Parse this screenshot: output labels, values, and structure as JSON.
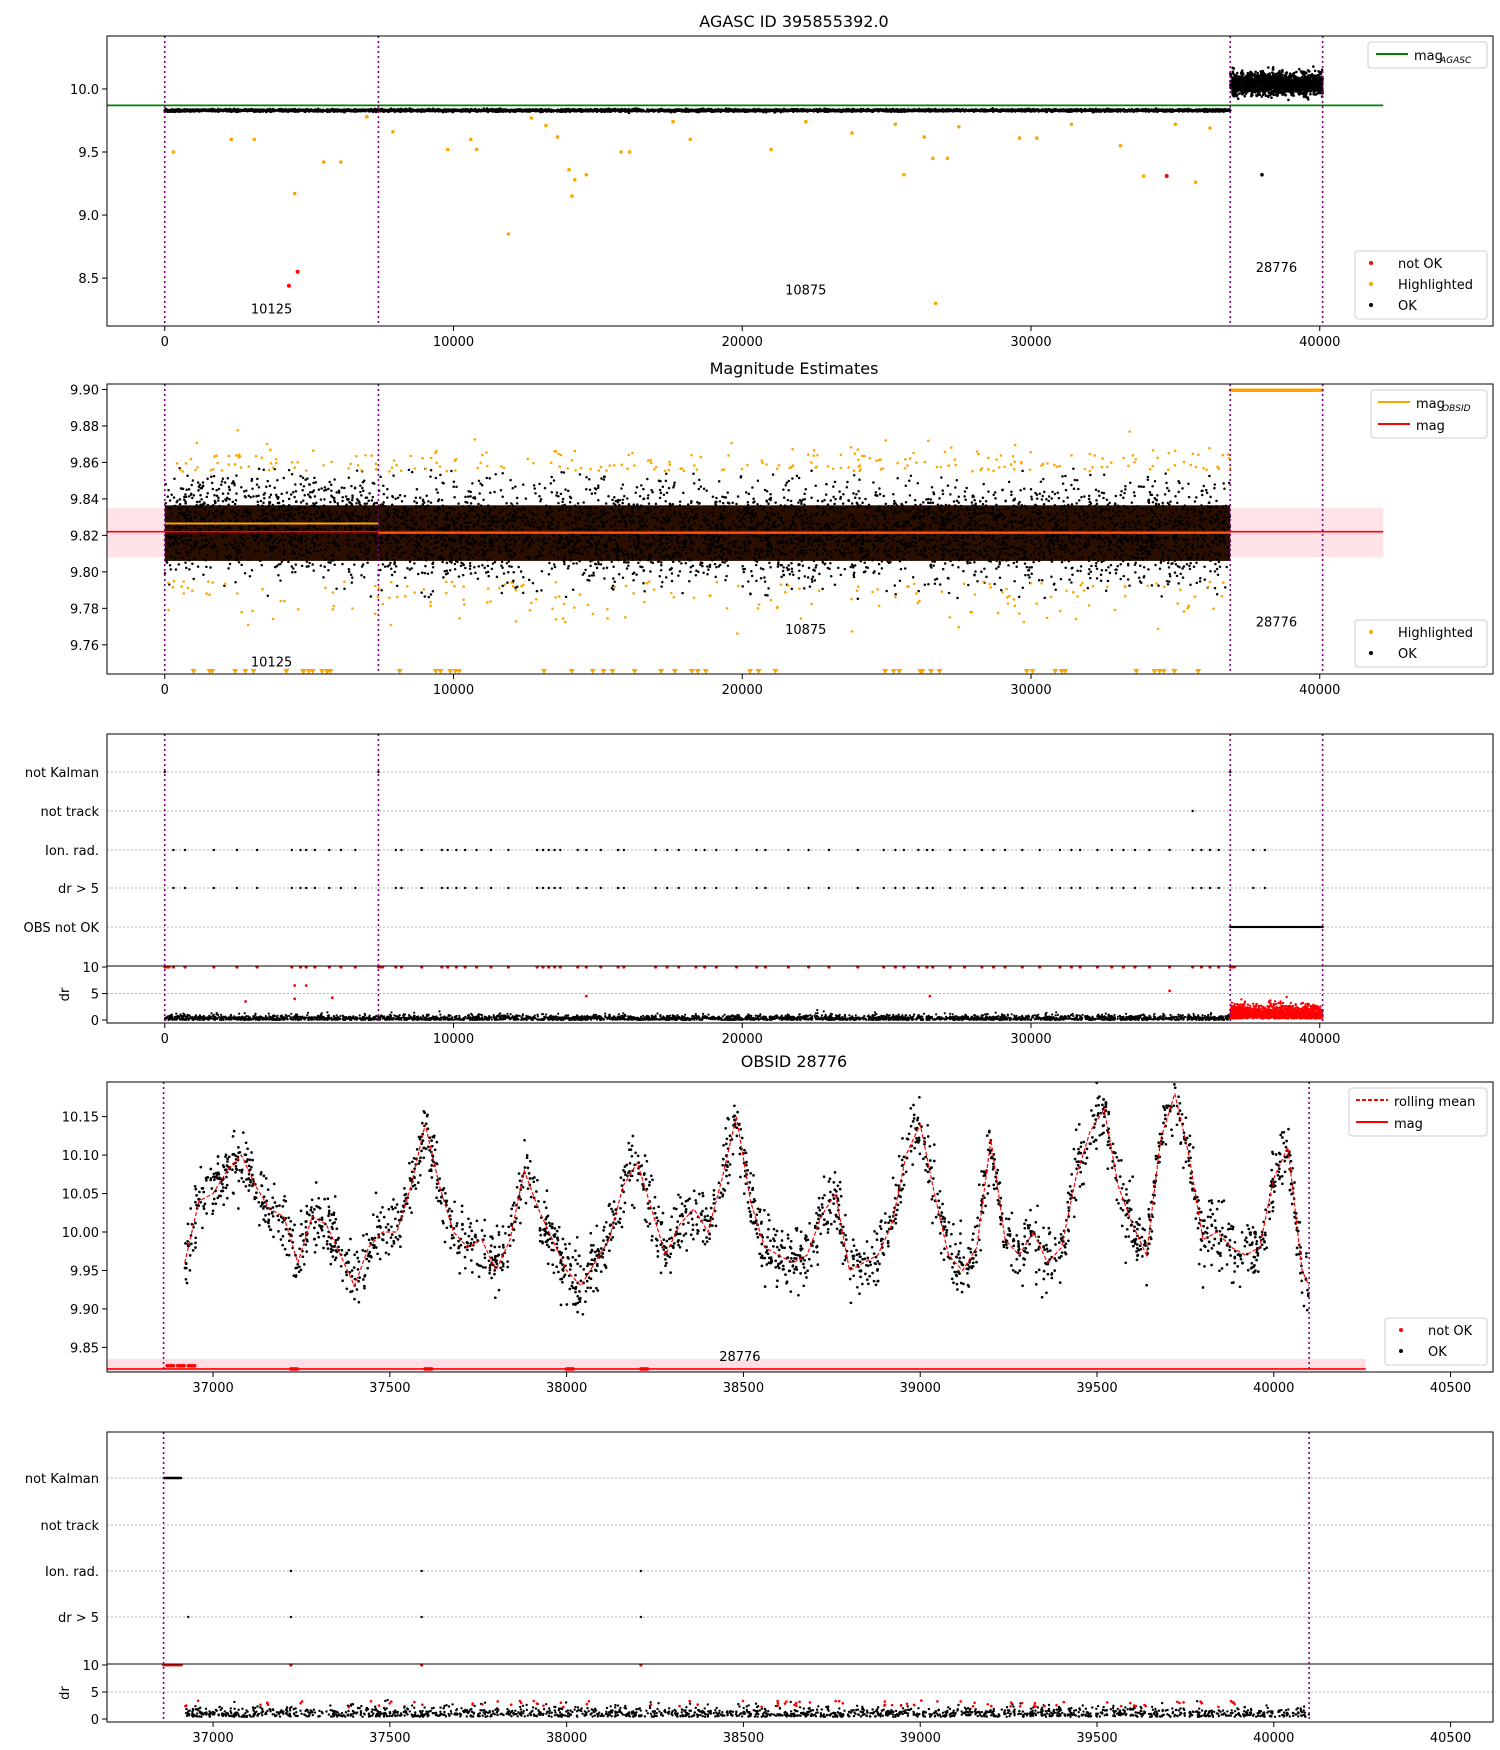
{
  "figure": {
    "panel1_title": "AGASC ID 395855392.0",
    "panel2_title": "Magnitude Estimates",
    "panel4_title": "OBSID 28776"
  },
  "colors": {
    "ok": "#000000",
    "highlighted": "#ffa500",
    "not_ok": "#ff0000",
    "agasc_line": "#008000",
    "mag_line": "#ff0000",
    "mag_band": "#ffc0cb",
    "obsid_mag_line": "#ffa500",
    "obs_boundary": "#800080",
    "rolling_mean": "#ff0000",
    "grid": "#b0b0b0"
  },
  "chart_data": [
    {
      "type": "scatter",
      "title": "AGASC ID 395855392.0",
      "xlabel": "",
      "ylabel": "",
      "xlim": [
        -2000,
        46000
      ],
      "ylim": [
        8.12,
        10.42
      ],
      "xticks": [
        0,
        10000,
        20000,
        30000,
        40000
      ],
      "xtick_labels": [
        "0",
        "10000",
        "20000",
        "30000",
        "40000"
      ],
      "yticks": [
        8.5,
        9.0,
        9.5,
        10.0
      ],
      "ytick_labels": [
        "8.5",
        "9.0",
        "9.5",
        "10.0"
      ],
      "hlines": [
        {
          "name": "mag_AGASC",
          "y": 9.87,
          "x_range": [
            -2000,
            42200
          ],
          "color": "#008000"
        }
      ],
      "obs_boundaries": [
        0,
        7400,
        36900,
        40100
      ],
      "obsid_labels": [
        {
          "text": "10125",
          "x": 3700,
          "y": 8.22
        },
        {
          "text": "10875",
          "x": 22200,
          "y": 8.37
        },
        {
          "text": "28776",
          "x": 38500,
          "y": 8.55
        }
      ],
      "series": [
        {
          "name": "not OK",
          "color": "#ff0000",
          "points": [
            [
              4300,
              8.44
            ],
            [
              4600,
              8.55
            ],
            [
              34700,
              9.31
            ]
          ]
        },
        {
          "name": "Highlighted",
          "color": "#ffa500",
          "points": [
            [
              300,
              9.5
            ],
            [
              2300,
              9.6
            ],
            [
              3100,
              9.6
            ],
            [
              4500,
              9.17
            ],
            [
              5500,
              9.42
            ],
            [
              6100,
              9.42
            ],
            [
              7000,
              9.78
            ],
            [
              7900,
              9.66
            ],
            [
              9800,
              9.52
            ],
            [
              10600,
              9.6
            ],
            [
              10800,
              9.52
            ],
            [
              11900,
              8.85
            ],
            [
              12700,
              9.77
            ],
            [
              13200,
              9.71
            ],
            [
              13600,
              9.62
            ],
            [
              14000,
              9.36
            ],
            [
              14100,
              9.15
            ],
            [
              14200,
              9.28
            ],
            [
              14600,
              9.32
            ],
            [
              15800,
              9.5
            ],
            [
              16100,
              9.5
            ],
            [
              17600,
              9.74
            ],
            [
              18200,
              9.6
            ],
            [
              21000,
              9.52
            ],
            [
              22200,
              9.74
            ],
            [
              23800,
              9.65
            ],
            [
              25300,
              9.72
            ],
            [
              25600,
              9.32
            ],
            [
              26300,
              9.62
            ],
            [
              26600,
              9.45
            ],
            [
              26700,
              8.3
            ],
            [
              27100,
              9.45
            ],
            [
              27500,
              9.7
            ],
            [
              29600,
              9.61
            ],
            [
              30200,
              9.61
            ],
            [
              31400,
              9.72
            ],
            [
              33100,
              9.55
            ],
            [
              33900,
              9.31
            ],
            [
              35000,
              9.72
            ],
            [
              35700,
              9.26
            ],
            [
              36200,
              9.69
            ]
          ]
        },
        {
          "name": "OK",
          "color": "#000000",
          "points": [
            [
              38000,
              9.32
            ]
          ],
          "dense_bands": [
            {
              "x": [
                0,
                36900
              ],
              "y_center": 9.83,
              "y_spread": 0.025
            },
            {
              "x": [
                36900,
                40100
              ],
              "y_center": 10.04,
              "y_spread": 0.12
            }
          ]
        }
      ],
      "legend": {
        "placement": "top-right",
        "entries": [
          "mag_AGASC"
        ]
      },
      "legend2": {
        "placement": "bottom-right",
        "entries": [
          "not OK",
          "Highlighted",
          "OK"
        ]
      }
    },
    {
      "type": "scatter",
      "title": "Magnitude Estimates",
      "xlabel": "",
      "ylabel": "",
      "xlim": [
        -2000,
        46000
      ],
      "ylim": [
        9.744,
        9.903
      ],
      "xticks": [
        0,
        10000,
        20000,
        30000,
        40000
      ],
      "xtick_labels": [
        "0",
        "10000",
        "20000",
        "30000",
        "40000"
      ],
      "yticks": [
        9.76,
        9.78,
        9.8,
        9.82,
        9.84,
        9.86,
        9.88,
        9.9
      ],
      "ytick_labels": [
        "9.76",
        "9.78",
        "9.80",
        "9.82",
        "9.84",
        "9.86",
        "9.88",
        "9.90"
      ],
      "mag_band": {
        "y_low": 9.808,
        "y_high": 9.835,
        "x_range": [
          -2000,
          42200
        ]
      },
      "mag": 9.822,
      "obsid_mag": [
        {
          "x_range": [
            0,
            7400
          ],
          "y": 9.8265
        },
        {
          "x_range": [
            7400,
            36900
          ],
          "y": 9.8215
        },
        {
          "x_range": [
            36900,
            40100
          ],
          "y": 9.9
        }
      ],
      "obs_boundaries": [
        0,
        7400,
        36900,
        40100
      ],
      "obsid_labels": [
        {
          "text": "10125",
          "x": 3700,
          "y": 9.748
        },
        {
          "text": "10875",
          "x": 22200,
          "y": 9.766
        },
        {
          "text": "28776",
          "x": 38500,
          "y": 9.77
        }
      ],
      "series": [
        {
          "name": "Highlighted",
          "color": "#ffa500",
          "note_points": "orange points scattered above 9.855 and below 9.795 across 0-36900; flat row at 9.90 for 36900-40100; clipped triangles along the bottom axis"
        },
        {
          "name": "OK",
          "color": "#000000",
          "dense_bands": [
            {
              "x": [
                0,
                7400
              ],
              "y_center": 9.8265,
              "y_spread": 0.025
            },
            {
              "x": [
                7400,
                36900
              ],
              "y_center": 9.8215,
              "y_spread": 0.025
            }
          ]
        }
      ],
      "legend": {
        "placement": "top-right",
        "entries": [
          "mag_OBSID",
          "mag"
        ]
      },
      "legend2": {
        "placement": "bottom-right",
        "entries": [
          "Highlighted",
          "OK"
        ]
      }
    },
    {
      "type": "scatter",
      "title": "",
      "xlim": [
        -2000,
        46000
      ],
      "categories": [
        "not Kalman",
        "not track",
        "Ion. rad.",
        "dr > 5",
        "OBS not OK"
      ],
      "xticks": [
        0,
        10000,
        20000,
        30000,
        40000
      ],
      "xtick_labels": [
        "0",
        "10000",
        "20000",
        "30000",
        "40000"
      ],
      "dr_ylabel": "dr",
      "dr_yticks": [
        0,
        5,
        10
      ],
      "dr_ytick_labels": [
        "0",
        "5",
        "10"
      ],
      "obs_boundaries": [
        0,
        7400,
        36900,
        40100
      ],
      "flags": {
        "not Kalman": [
          0,
          7400,
          36900
        ],
        "not track": [
          35600
        ],
        "Ion. rad.": [
          300,
          700,
          1700,
          2500,
          3200,
          4400,
          4700,
          4900,
          5200,
          5700,
          6100,
          6600,
          8000,
          8200,
          8900,
          9600,
          9800,
          10100,
          10400,
          10800,
          11300,
          11900,
          12900,
          13100,
          13300,
          13500,
          13700,
          14300,
          14600,
          15100,
          15700,
          15900,
          17000,
          17400,
          17800,
          18400,
          18700,
          19100,
          19800,
          20500,
          20800,
          21600,
          22300,
          23000,
          24000,
          24900,
          25300,
          25600,
          26100,
          26400,
          26600,
          27200,
          27700,
          28300,
          28700,
          29100,
          29700,
          30300,
          31000,
          31400,
          31700,
          32300,
          32800,
          33200,
          33600,
          34100,
          34800,
          35600,
          35900,
          36200,
          36500,
          37700,
          38100
        ],
        "dr > 5": [
          300,
          700,
          1700,
          2500,
          3200,
          4400,
          4700,
          4900,
          5200,
          5700,
          6100,
          6600,
          8000,
          8200,
          8900,
          9600,
          9800,
          10100,
          10400,
          10800,
          11300,
          11900,
          12900,
          13100,
          13300,
          13500,
          13700,
          14300,
          14600,
          15100,
          15700,
          15900,
          17000,
          17400,
          17800,
          18400,
          18700,
          19100,
          19800,
          20500,
          20800,
          21600,
          22300,
          23000,
          24000,
          24900,
          25300,
          25600,
          26100,
          26400,
          26600,
          27200,
          27700,
          28300,
          28700,
          29100,
          29700,
          30300,
          31000,
          31400,
          31700,
          32300,
          32800,
          33200,
          33600,
          34100,
          34800,
          35600,
          35900,
          36200,
          36500,
          37700,
          38100
        ],
        "OBS not OK": [
          [
            36900,
            40100
          ]
        ]
      },
      "dr_series": [
        {
          "name": "OK",
          "color": "#000000",
          "note": "dense black points 0-1 from 0 to 36900"
        },
        {
          "name": "not OK",
          "color": "#ff0000",
          "note": "red row at 10 (clipped) on flagged times; dense red 0-3 from 36900 to 40100; sparse red points near 3-6"
        }
      ]
    },
    {
      "type": "line",
      "title": "OBSID 28776",
      "xlabel": "",
      "ylabel": "",
      "xlim": [
        36700,
        40620
      ],
      "ylim": [
        9.818,
        10.195
      ],
      "xticks": [
        37000,
        37500,
        38000,
        38500,
        39000,
        39500,
        40000,
        40500
      ],
      "xtick_labels": [
        "37000",
        "37500",
        "38000",
        "38500",
        "39000",
        "39500",
        "40000",
        "40500"
      ],
      "yticks": [
        9.85,
        9.9,
        9.95,
        10.0,
        10.05,
        10.1,
        10.15
      ],
      "ytick_labels": [
        "9.85",
        "9.90",
        "9.95",
        "10.00",
        "10.05",
        "10.10",
        "10.15"
      ],
      "mag": 9.822,
      "mag_band": {
        "y_low": 9.814,
        "y_high": 9.835,
        "x_range": [
          36700,
          40260
        ]
      },
      "obs_boundaries": [
        36860,
        40100
      ],
      "obsid_labels": [
        {
          "text": "28776",
          "x": 38490,
          "y": 9.832
        }
      ],
      "series": [
        {
          "name": "rolling mean",
          "color": "#ff0000",
          "style": "dashed",
          "x": [
            36920,
            36960,
            37000,
            37040,
            37080,
            37120,
            37160,
            37200,
            37240,
            37280,
            37320,
            37360,
            37400,
            37440,
            37480,
            37520,
            37560,
            37600,
            37640,
            37680,
            37720,
            37760,
            37800,
            37840,
            37880,
            37920,
            37960,
            38000,
            38040,
            38080,
            38120,
            38160,
            38200,
            38240,
            38280,
            38320,
            38360,
            38400,
            38440,
            38480,
            38520,
            38560,
            38600,
            38640,
            38680,
            38720,
            38760,
            38800,
            38840,
            38880,
            38920,
            38960,
            39000,
            39040,
            39080,
            39120,
            39160,
            39200,
            39240,
            39280,
            39320,
            39360,
            39400,
            39440,
            39480,
            39520,
            39560,
            39600,
            39640,
            39680,
            39720,
            39760,
            39800,
            39840,
            39880,
            39920,
            39960,
            40000,
            40040,
            40080,
            40100
          ],
          "values": [
            9.96,
            10.04,
            10.05,
            10.08,
            10.1,
            10.06,
            10.03,
            10.02,
            9.96,
            10.02,
            10.01,
            9.97,
            9.93,
            9.98,
            10.0,
            10.0,
            10.06,
            10.14,
            10.06,
            10.0,
            9.98,
            9.99,
            9.95,
            9.99,
            10.08,
            10.03,
            9.99,
            9.95,
            9.93,
            9.96,
            9.99,
            10.06,
            10.09,
            10.03,
            9.97,
            10.01,
            10.03,
            10.0,
            10.07,
            10.15,
            10.04,
            9.98,
            9.97,
            9.96,
            9.97,
            10.02,
            10.05,
            9.95,
            9.96,
            9.97,
            10.01,
            10.1,
            10.14,
            10.05,
            9.97,
            9.95,
            9.98,
            10.12,
            9.99,
            9.97,
            10.0,
            9.96,
            9.98,
            10.07,
            10.13,
            10.16,
            10.06,
            10.01,
            9.97,
            10.12,
            10.18,
            10.1,
            9.99,
            10.0,
            9.98,
            9.97,
            9.98,
            10.07,
            10.11,
            9.95,
            9.93
          ]
        },
        {
          "name": "mag",
          "color": "#ff0000",
          "style": "solid",
          "y": 9.822
        },
        {
          "name": "OK",
          "color": "#000000",
          "note": "dense black points scattered about the rolling mean"
        },
        {
          "name": "not OK",
          "color": "#ff0000",
          "points": [
            [
              36870,
              9.826
            ],
            [
              36900,
              9.826
            ],
            [
              36930,
              9.826
            ],
            [
              37220,
              9.822
            ],
            [
              37600,
              9.822
            ],
            [
              38000,
              9.822
            ],
            [
              38210,
              9.822
            ]
          ]
        }
      ],
      "legend": {
        "placement": "top-right",
        "entries": [
          "rolling mean",
          "mag"
        ]
      },
      "legend2": {
        "placement": "bottom-right",
        "entries": [
          "not OK",
          "OK"
        ]
      }
    },
    {
      "type": "scatter",
      "title": "",
      "xlim": [
        36700,
        40620
      ],
      "categories": [
        "not Kalman",
        "not track",
        "Ion. rad.",
        "dr > 5"
      ],
      "xticks": [
        37000,
        37500,
        38000,
        38500,
        39000,
        39500,
        40000,
        40500
      ],
      "xtick_labels": [
        "37000",
        "37500",
        "38000",
        "38500",
        "39000",
        "39500",
        "40000",
        "40500"
      ],
      "dr_ylabel": "dr",
      "dr_yticks": [
        0,
        5,
        10
      ],
      "dr_ytick_labels": [
        "0",
        "5",
        "10"
      ],
      "obs_boundaries": [
        36860,
        40100
      ],
      "flags": {
        "not Kalman": [
          [
            36860,
            36910
          ]
        ],
        "not track": [],
        "Ion. rad.": [
          37220,
          37590,
          38210
        ],
        "dr > 5": [
          36930,
          37220,
          37590,
          38210
        ]
      },
      "dr_series": [
        {
          "name": "OK",
          "color": "#000000",
          "note": "dense black points 0-2 across 36860-40100"
        },
        {
          "name": "not OK",
          "color": "#ff0000",
          "note": "red points at 10 for 36860-36910, 37220, 37590, 38210; small red clusters near 2-3"
        }
      ]
    }
  ]
}
